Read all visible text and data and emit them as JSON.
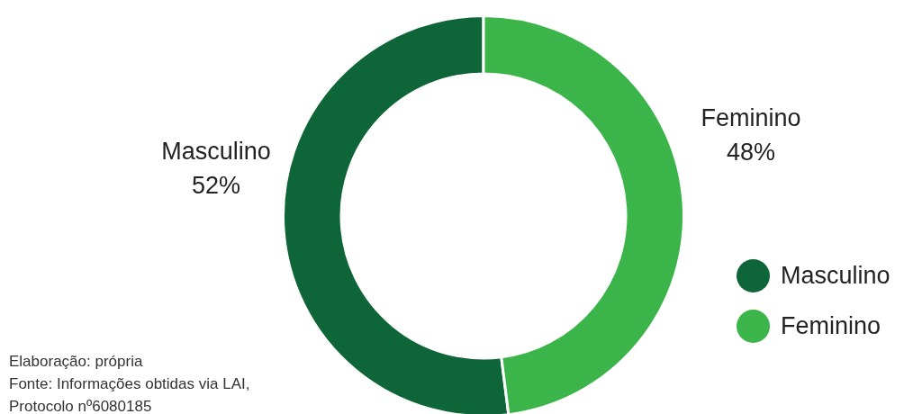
{
  "chart_data": {
    "type": "donut",
    "categories": [
      "Masculino",
      "Feminino"
    ],
    "values": [
      52,
      48
    ],
    "colors": [
      "#0e6638",
      "#3bb54a"
    ],
    "value_labels": [
      "52%",
      "48%"
    ],
    "legend": "right",
    "annotations": [
      "Elaboração: própria",
      "Fonte: Informações obtidas via LAI, Protocolo nº6080185"
    ]
  }
}
